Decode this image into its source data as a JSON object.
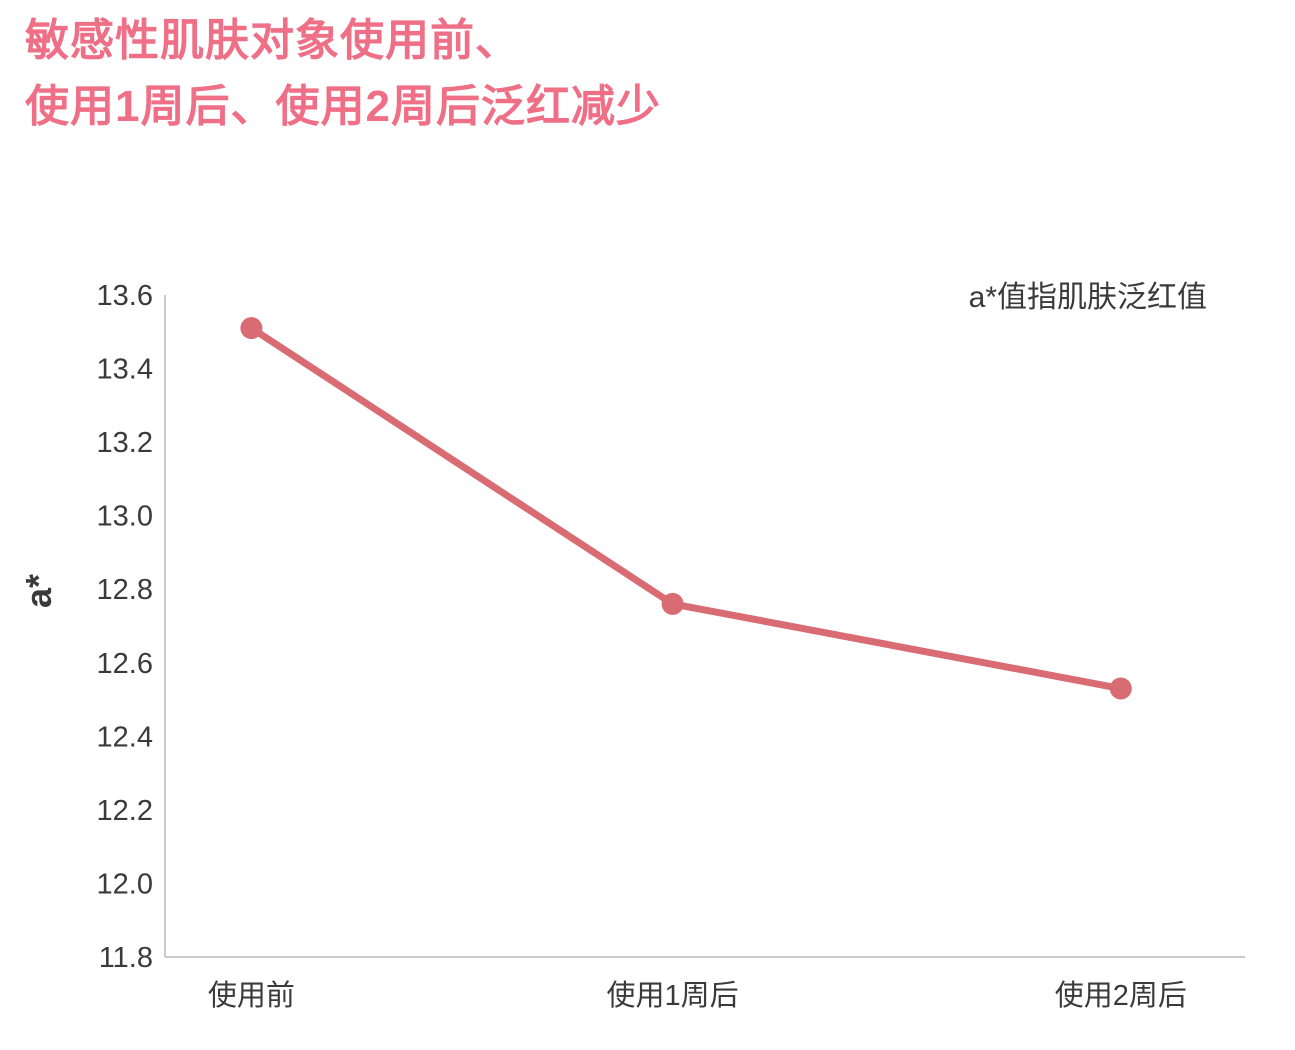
{
  "title": {
    "line1": "敏感性肌肤对象使用前、",
    "line2": "使用1周后、使用2周后泛红减少"
  },
  "annotation": "a*值指肌肤泛红值",
  "colors": {
    "title": "#ef6f87",
    "line": "#d96b73",
    "axis": "#c9c9c9",
    "text": "#3a3a3a"
  },
  "chart_data": {
    "type": "line",
    "title": "敏感性肌肤对象使用前、使用1周后、使用2周后泛红减少",
    "categories": [
      "使用前",
      "使用1周后",
      "使用2周后"
    ],
    "values": [
      13.51,
      12.76,
      12.53
    ],
    "xlabel": "",
    "ylabel": "a*",
    "ylim": [
      11.8,
      13.6
    ],
    "ytick_step": 0.2,
    "ytick_labels": [
      "11.8",
      "12.0",
      "12.2",
      "12.4",
      "12.6",
      "12.8",
      "13.0",
      "13.2",
      "13.4",
      "13.6"
    ],
    "annotation": "a*值指肌肤泛红值",
    "grid": false,
    "legend": "none"
  }
}
